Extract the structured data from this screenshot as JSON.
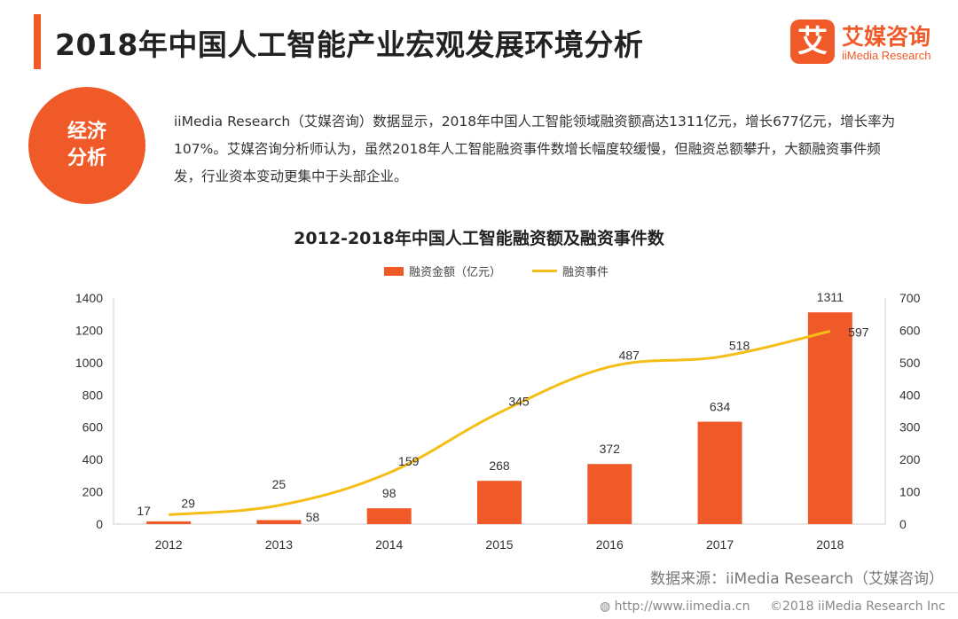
{
  "header": {
    "title": "2018年中国人工智能产业宏观发展环境分析",
    "logo_mark": "艾",
    "logo_name": "艾媒咨询",
    "logo_sub": "iiMedia Research"
  },
  "badge": {
    "line1": "经济",
    "line2": "分析"
  },
  "paragraph": "iiMedia Research（艾媒咨询）数据显示，2018年中国人工智能领域融资额高达1311亿元，增长677亿元，增长率为107%。艾媒咨询分析师认为，虽然2018年人工智能融资事件数增长幅度较缓慢，但融资总额攀升，大额融资事件频发，行业资本变动更集中于头部企业。",
  "chart_data": {
    "type": "bar",
    "title": "2012-2018年中国人工智能融资额及融资事件数",
    "categories": [
      "2012",
      "2013",
      "2014",
      "2015",
      "2016",
      "2017",
      "2018"
    ],
    "series": [
      {
        "name": "融资金额（亿元）",
        "type": "bar",
        "axis": "left",
        "values": [
          17,
          25,
          98,
          268,
          372,
          634,
          1311
        ]
      },
      {
        "name": "融资事件",
        "type": "line",
        "axis": "right",
        "values": [
          29,
          58,
          159,
          345,
          487,
          518,
          597
        ]
      }
    ],
    "y_left": {
      "min": 0,
      "max": 1400,
      "ticks": [
        0,
        200,
        400,
        600,
        800,
        1000,
        1200,
        1400
      ]
    },
    "y_right": {
      "min": 0,
      "max": 700,
      "ticks": [
        0,
        100,
        200,
        300,
        400,
        500,
        600,
        700
      ]
    },
    "legend_position": "top-center",
    "grid": false,
    "colors": {
      "bar": "#f05a28",
      "line": "#f5be17"
    }
  },
  "source": "数据来源：iiMedia Research（艾媒咨询）",
  "footer": {
    "url": "http://www.iimedia.cn",
    "copyright": "©2018  iiMedia Research Inc"
  }
}
